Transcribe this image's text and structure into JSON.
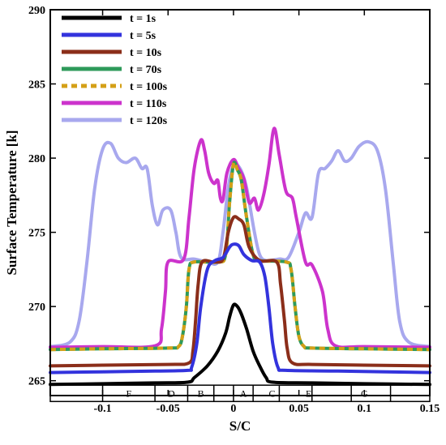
{
  "chart_data": {
    "type": "line",
    "xlabel": "S/C",
    "ylabel": "Surface Temperature [k]",
    "xlim": [
      -0.14,
      0.15
    ],
    "ylim": [
      264,
      290
    ],
    "x_ticks": [
      -0.1,
      -0.05,
      0,
      0.05,
      0.1,
      0.15
    ],
    "x_tick_labels": [
      "-0.1",
      "-0.05",
      "0",
      "0.05",
      "0.1",
      "0.15"
    ],
    "y_ticks": [
      265,
      270,
      275,
      280,
      285,
      290
    ],
    "y_tick_labels": [
      "265",
      "270",
      "275",
      "280",
      "285",
      "290"
    ],
    "legend_position": "top-left",
    "grid": false,
    "zone_strip": {
      "y_range": [
        263.6,
        264.7
      ],
      "boundaries": [
        -0.14,
        -0.1,
        -0.06,
        -0.035,
        -0.015,
        0,
        0.015,
        0.035,
        0.06,
        0.09,
        0.12,
        0.15
      ],
      "labels": [
        {
          "x": -0.08,
          "text": "F"
        },
        {
          "x": -0.0475,
          "text": "D"
        },
        {
          "x": -0.025,
          "text": "B"
        },
        {
          "x": 0.0075,
          "text": "A"
        },
        {
          "x": 0.0295,
          "text": "C"
        },
        {
          "x": 0.0575,
          "text": "E"
        },
        {
          "x": 0.1,
          "text": "G"
        }
      ]
    },
    "series": [
      {
        "name": "t = 1s",
        "color": "#000000",
        "dash": false,
        "points": [
          [
            -0.14,
            264.75
          ],
          [
            -0.1,
            264.8
          ],
          [
            -0.06,
            264.85
          ],
          [
            -0.035,
            264.9
          ],
          [
            -0.03,
            265.2
          ],
          [
            -0.02,
            266
          ],
          [
            -0.012,
            267
          ],
          [
            -0.006,
            268.2
          ],
          [
            -0.003,
            269.3
          ],
          [
            0,
            270.1
          ],
          [
            0.003,
            270
          ],
          [
            0.006,
            269.5
          ],
          [
            0.01,
            268.5
          ],
          [
            0.015,
            267
          ],
          [
            0.02,
            266
          ],
          [
            0.025,
            265.2
          ],
          [
            0.03,
            264.9
          ],
          [
            0.06,
            264.85
          ],
          [
            0.1,
            264.8
          ],
          [
            0.15,
            264.75
          ]
        ]
      },
      {
        "name": "t = 5s",
        "color": "#3333dd",
        "dash": false,
        "points": [
          [
            -0.14,
            265.55
          ],
          [
            -0.1,
            265.6
          ],
          [
            -0.06,
            265.65
          ],
          [
            -0.035,
            265.7
          ],
          [
            -0.032,
            265.9
          ],
          [
            -0.028,
            267.5
          ],
          [
            -0.025,
            270
          ],
          [
            -0.02,
            272.5
          ],
          [
            -0.014,
            273.1
          ],
          [
            -0.008,
            273.3
          ],
          [
            -0.003,
            274
          ],
          [
            0,
            274.2
          ],
          [
            0.004,
            274.1
          ],
          [
            0.008,
            273.5
          ],
          [
            0.014,
            273.1
          ],
          [
            0.02,
            273
          ],
          [
            0.024,
            272
          ],
          [
            0.027,
            270
          ],
          [
            0.03,
            267.5
          ],
          [
            0.034,
            265.9
          ],
          [
            0.04,
            265.7
          ],
          [
            0.08,
            265.65
          ],
          [
            0.15,
            265.55
          ]
        ]
      },
      {
        "name": "t = 10s",
        "color": "#8b2e1a",
        "dash": false,
        "points": [
          [
            -0.14,
            266
          ],
          [
            -0.1,
            266.05
          ],
          [
            -0.05,
            266.1
          ],
          [
            -0.034,
            266.2
          ],
          [
            -0.031,
            267
          ],
          [
            -0.029,
            269
          ],
          [
            -0.027,
            271.5
          ],
          [
            -0.024,
            273
          ],
          [
            -0.015,
            273
          ],
          [
            -0.008,
            273.2
          ],
          [
            -0.004,
            275
          ],
          [
            0,
            276
          ],
          [
            0.004,
            275.9
          ],
          [
            0.008,
            275.5
          ],
          [
            0.012,
            274
          ],
          [
            0.02,
            273.1
          ],
          [
            0.033,
            273
          ],
          [
            0.036,
            271.5
          ],
          [
            0.039,
            269
          ],
          [
            0.041,
            267.2
          ],
          [
            0.045,
            266.2
          ],
          [
            0.06,
            266.1
          ],
          [
            0.1,
            266.05
          ],
          [
            0.15,
            266
          ]
        ]
      },
      {
        "name": "t = 70s",
        "color": "#2e9a5a",
        "dash": false,
        "points": [
          [
            -0.14,
            267.1
          ],
          [
            -0.1,
            267.15
          ],
          [
            -0.05,
            267.2
          ],
          [
            -0.042,
            267.3
          ],
          [
            -0.039,
            268
          ],
          [
            -0.036,
            270
          ],
          [
            -0.034,
            272.5
          ],
          [
            -0.03,
            273
          ],
          [
            -0.012,
            273
          ],
          [
            -0.006,
            273.5
          ],
          [
            -0.003,
            277
          ],
          [
            0,
            279.6
          ],
          [
            0.003,
            279.2
          ],
          [
            0.006,
            278.5
          ],
          [
            0.01,
            276
          ],
          [
            0.015,
            273.5
          ],
          [
            0.02,
            273.1
          ],
          [
            0.04,
            273
          ],
          [
            0.044,
            272.5
          ],
          [
            0.047,
            270
          ],
          [
            0.05,
            268
          ],
          [
            0.054,
            267.3
          ],
          [
            0.06,
            267.2
          ],
          [
            0.1,
            267.15
          ],
          [
            0.15,
            267.1
          ]
        ]
      },
      {
        "name": "t = 100s",
        "color": "#d4a017",
        "dash": true,
        "points": [
          [
            -0.14,
            267.1
          ],
          [
            -0.1,
            267.15
          ],
          [
            -0.05,
            267.2
          ],
          [
            -0.042,
            267.3
          ],
          [
            -0.039,
            268
          ],
          [
            -0.036,
            270
          ],
          [
            -0.034,
            272.5
          ],
          [
            -0.03,
            273
          ],
          [
            -0.012,
            273
          ],
          [
            -0.006,
            273.5
          ],
          [
            -0.003,
            277
          ],
          [
            0,
            279.6
          ],
          [
            0.003,
            279.2
          ],
          [
            0.006,
            278.5
          ],
          [
            0.01,
            276
          ],
          [
            0.015,
            273.5
          ],
          [
            0.02,
            273.1
          ],
          [
            0.04,
            273
          ],
          [
            0.044,
            272.5
          ],
          [
            0.047,
            270
          ],
          [
            0.05,
            268
          ],
          [
            0.054,
            267.3
          ],
          [
            0.06,
            267.2
          ],
          [
            0.1,
            267.15
          ],
          [
            0.15,
            267.1
          ]
        ]
      },
      {
        "name": "t = 110s",
        "color": "#cc33cc",
        "dash": false,
        "points": [
          [
            -0.14,
            267.25
          ],
          [
            -0.1,
            267.3
          ],
          [
            -0.06,
            267.35
          ],
          [
            -0.055,
            268.5
          ],
          [
            -0.052,
            271
          ],
          [
            -0.05,
            273
          ],
          [
            -0.038,
            273.2
          ],
          [
            -0.034,
            276
          ],
          [
            -0.03,
            279.3
          ],
          [
            -0.025,
            281.2
          ],
          [
            -0.022,
            280.5
          ],
          [
            -0.019,
            279
          ],
          [
            -0.015,
            278.3
          ],
          [
            -0.012,
            278.5
          ],
          [
            -0.01,
            277.3
          ],
          [
            -0.008,
            277.2
          ],
          [
            -0.005,
            279
          ],
          [
            0,
            279.9
          ],
          [
            0.004,
            279.3
          ],
          [
            0.008,
            278.6
          ],
          [
            0.012,
            277
          ],
          [
            0.016,
            277.3
          ],
          [
            0.019,
            276.5
          ],
          [
            0.023,
            277.5
          ],
          [
            0.027,
            279.5
          ],
          [
            0.031,
            282
          ],
          [
            0.035,
            280.2
          ],
          [
            0.04,
            277.8
          ],
          [
            0.045,
            277.3
          ],
          [
            0.048,
            276
          ],
          [
            0.055,
            273
          ],
          [
            0.06,
            272.8
          ],
          [
            0.068,
            271
          ],
          [
            0.072,
            268.5
          ],
          [
            0.078,
            267.35
          ],
          [
            0.1,
            267.3
          ],
          [
            0.15,
            267.25
          ]
        ]
      },
      {
        "name": "t = 120s",
        "color": "#a8a8ee",
        "dash": false,
        "points": [
          [
            -0.14,
            267.3
          ],
          [
            -0.125,
            267.6
          ],
          [
            -0.118,
            269
          ],
          [
            -0.112,
            273
          ],
          [
            -0.106,
            278
          ],
          [
            -0.1,
            280.6
          ],
          [
            -0.094,
            281
          ],
          [
            -0.088,
            280
          ],
          [
            -0.082,
            279.7
          ],
          [
            -0.075,
            280
          ],
          [
            -0.07,
            279.3
          ],
          [
            -0.066,
            279.3
          ],
          [
            -0.062,
            276.8
          ],
          [
            -0.058,
            275.5
          ],
          [
            -0.054,
            276.5
          ],
          [
            -0.048,
            276.5
          ],
          [
            -0.044,
            275
          ],
          [
            -0.04,
            273.3
          ],
          [
            -0.03,
            273.2
          ],
          [
            -0.02,
            273
          ],
          [
            -0.012,
            273
          ],
          [
            -0.008,
            275
          ],
          [
            -0.004,
            278
          ],
          [
            0,
            279.5
          ],
          [
            0.005,
            279.3
          ],
          [
            0.01,
            278
          ],
          [
            0.016,
            275
          ],
          [
            0.02,
            273.5
          ],
          [
            0.025,
            273.1
          ],
          [
            0.035,
            273.2
          ],
          [
            0.042,
            273.3
          ],
          [
            0.05,
            275
          ],
          [
            0.055,
            276.3
          ],
          [
            0.06,
            276
          ],
          [
            0.065,
            279
          ],
          [
            0.07,
            279.3
          ],
          [
            0.075,
            279.8
          ],
          [
            0.08,
            280.5
          ],
          [
            0.085,
            279.8
          ],
          [
            0.09,
            280
          ],
          [
            0.096,
            280.8
          ],
          [
            0.103,
            281.1
          ],
          [
            0.11,
            280.5
          ],
          [
            0.116,
            278
          ],
          [
            0.122,
            273
          ],
          [
            0.127,
            269
          ],
          [
            0.134,
            267.6
          ],
          [
            0.15,
            267.3
          ]
        ]
      }
    ]
  }
}
